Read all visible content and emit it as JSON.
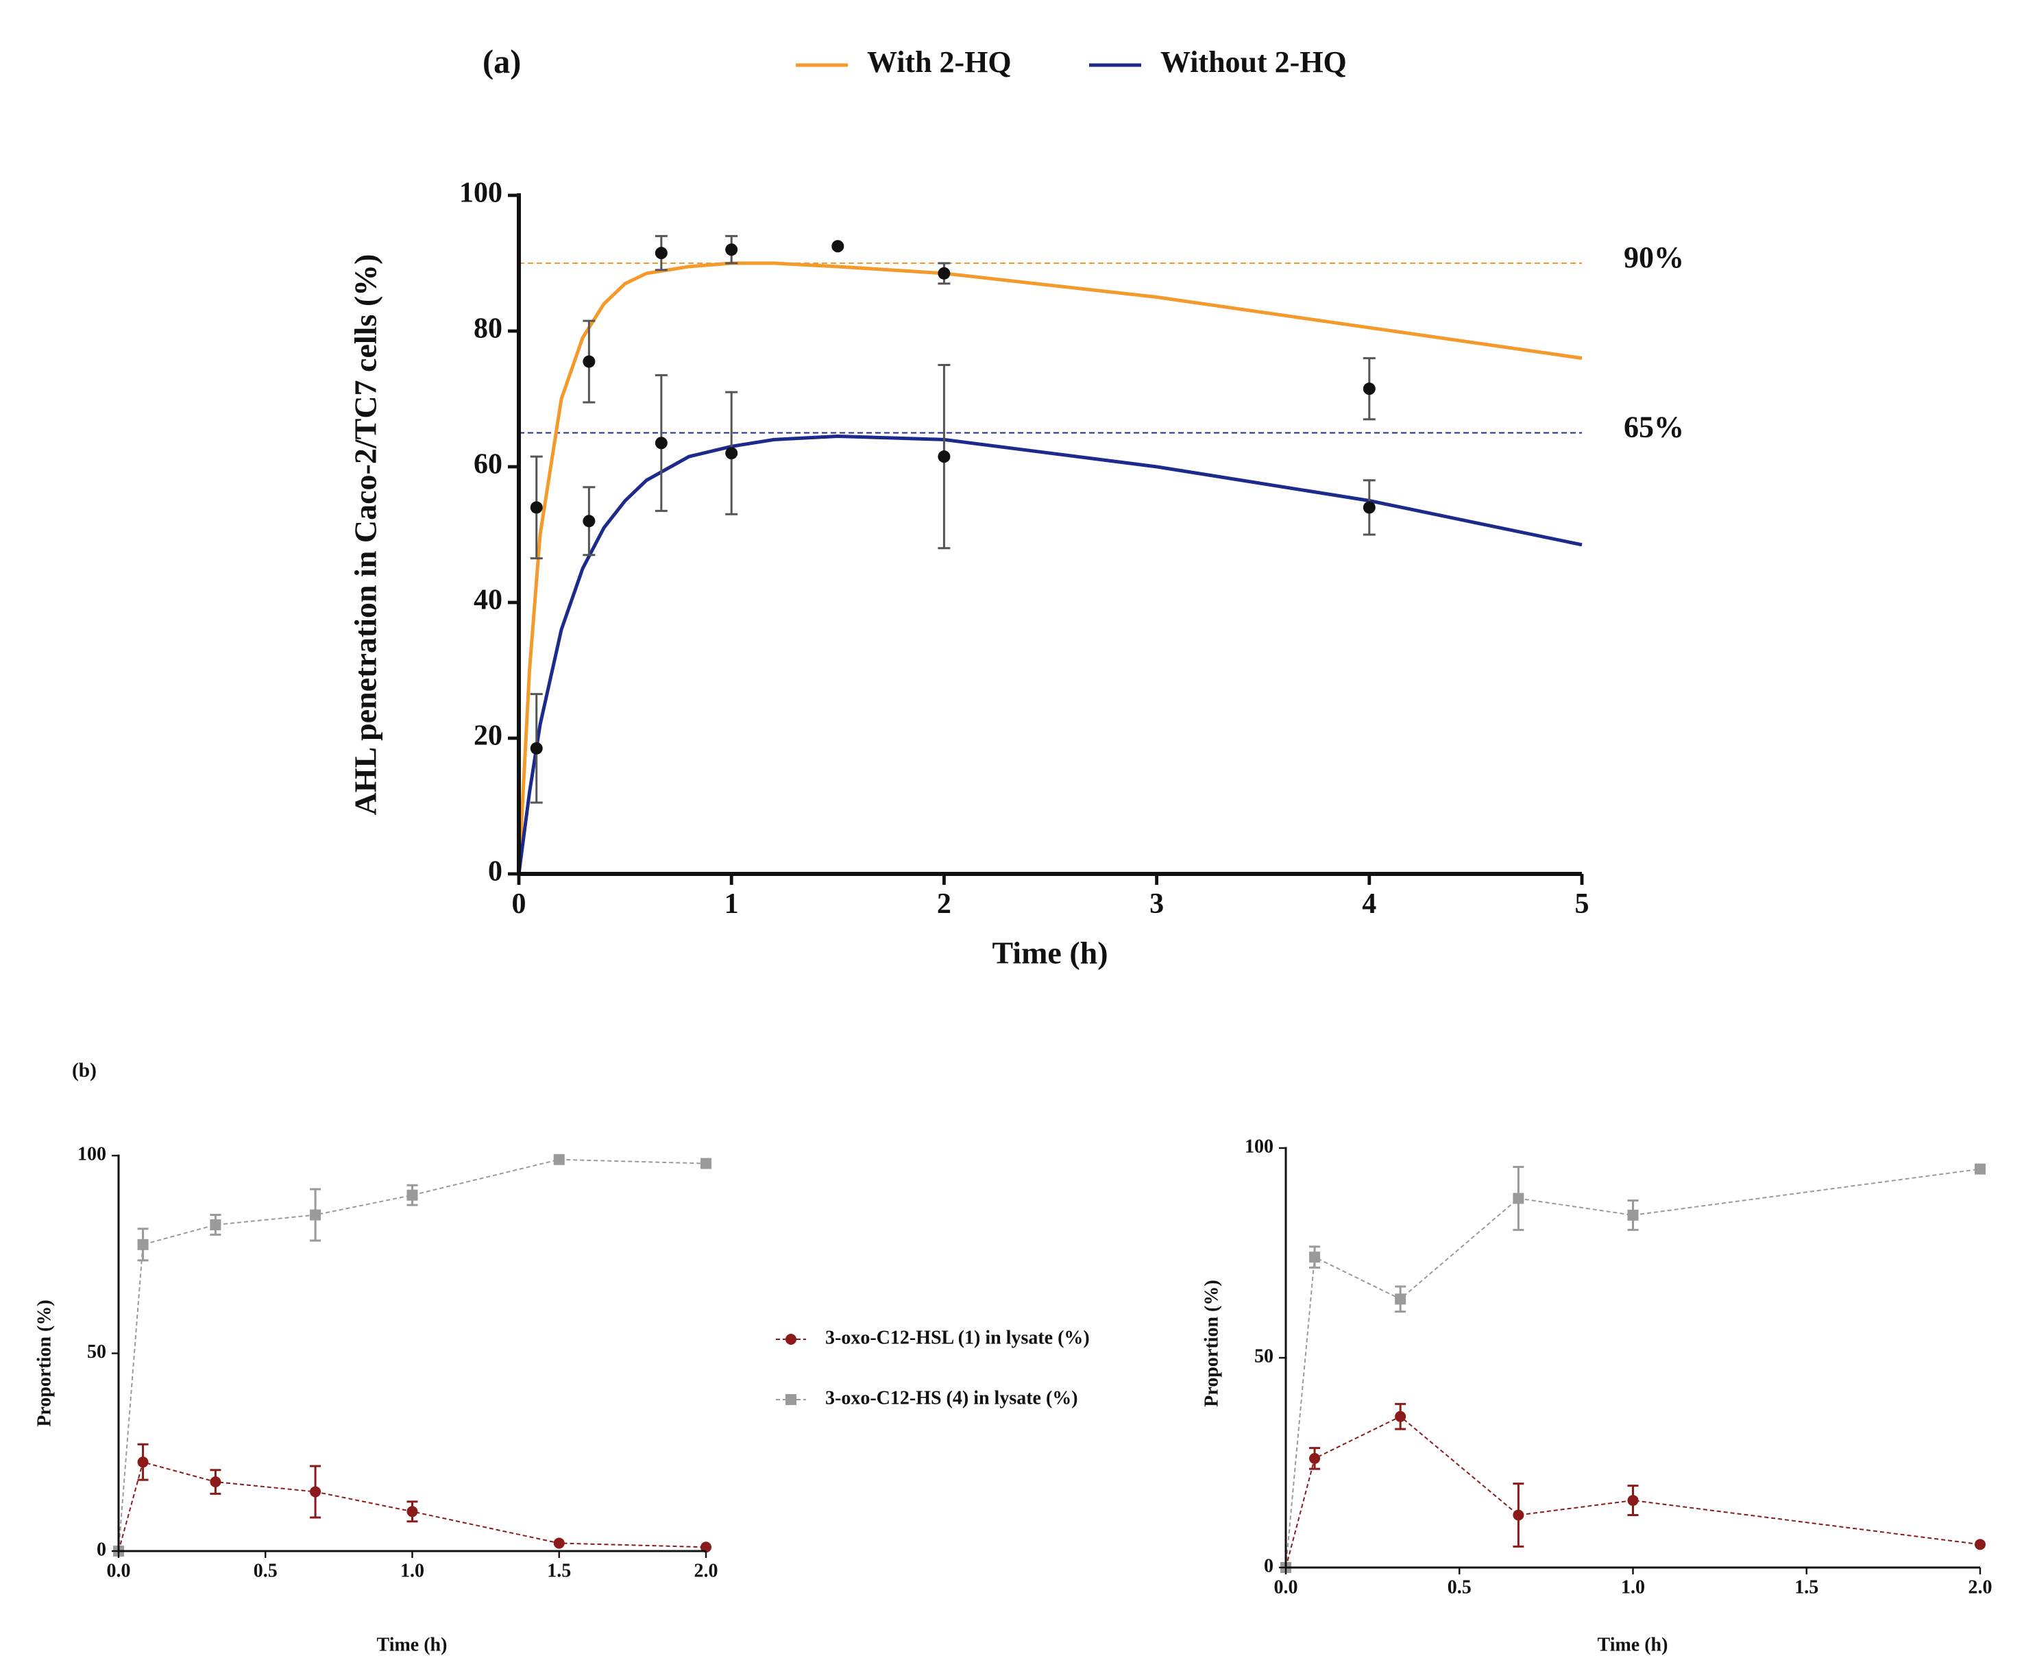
{
  "chart_data": [
    {
      "type": "scatter",
      "panel_label": "(a)",
      "xlabel": "Time (h)",
      "ylabel": "AHL penetration in Caco-2/TC7 cells (%)",
      "xlim": [
        0,
        5
      ],
      "xticks": [
        0,
        1,
        2,
        3,
        4,
        5
      ],
      "ylim": [
        0,
        100
      ],
      "yticks": [
        0,
        20,
        40,
        60,
        80,
        100
      ],
      "legend": "top",
      "series": [
        {
          "name": "With 2-HQ",
          "color": "#f39a2b",
          "line": "solid",
          "marker": "none",
          "x": [
            0,
            0.05,
            0.1,
            0.2,
            0.3,
            0.4,
            0.5,
            0.6,
            0.8,
            1,
            1.2,
            1.5,
            2,
            3,
            4,
            5
          ],
          "values": [
            0,
            30,
            50,
            70,
            79,
            84,
            87,
            88.5,
            89.5,
            90,
            90,
            89.5,
            88.5,
            85,
            80.5,
            76
          ]
        },
        {
          "name": "Without 2-HQ",
          "color": "#1c2a8c",
          "line": "solid",
          "marker": "none",
          "x": [
            0,
            0.05,
            0.1,
            0.2,
            0.3,
            0.4,
            0.5,
            0.6,
            0.8,
            1,
            1.2,
            1.5,
            2,
            3,
            4,
            5
          ],
          "values": [
            0,
            12,
            22,
            36,
            45,
            51,
            55,
            58,
            61.5,
            63,
            64,
            64.5,
            64,
            60,
            55,
            48.5
          ]
        },
        {
          "color": "#111111",
          "line": "none",
          "marker": "circle",
          "x": [
            0.083,
            0.33,
            0.67,
            1,
            1.5,
            2,
            4
          ],
          "values": [
            54,
            75.5,
            91.5,
            92,
            92.5,
            88.5,
            71.5
          ],
          "errors": [
            7.5,
            6,
            2.5,
            2,
            null,
            1.5,
            4.5
          ]
        },
        {
          "color": "#111111",
          "line": "none",
          "marker": "circle",
          "x": [
            0.083,
            0.33,
            0.67,
            1,
            2,
            4
          ],
          "values": [
            18.5,
            52,
            63.5,
            62,
            61.5,
            54
          ],
          "errors": [
            8,
            5,
            10,
            9,
            13.5,
            4
          ]
        }
      ],
      "reference_lines": [
        {
          "value": 90,
          "label": "90%",
          "color": "#f39a2b"
        },
        {
          "value": 65,
          "label": "65%",
          "color": "#1c2a8c"
        }
      ]
    },
    {
      "type": "scatter",
      "panel_label": "(b)",
      "xlabel": "Time (h)",
      "ylabel": "Proportion (%)",
      "xlim": [
        0,
        2
      ],
      "xticks": [
        {
          "value": 0,
          "label": "0.0"
        },
        0.5,
        {
          "value": 1,
          "label": "1.0"
        },
        1.5,
        {
          "value": 2,
          "label": "2.0"
        }
      ],
      "ylim": [
        0,
        100
      ],
      "yticks": [
        0,
        50,
        100
      ],
      "legend": "right",
      "series": [
        {
          "name": "3-oxo-C12-HSL (1) in lysate (%)",
          "color": "#8b1a1a",
          "line": "dashed",
          "marker": "circle",
          "x": [
            0,
            0.083,
            0.33,
            0.67,
            1,
            1.5,
            2
          ],
          "values": [
            0,
            22.5,
            17.5,
            15,
            10,
            2,
            1
          ],
          "errors": [
            null,
            4.5,
            3,
            6.5,
            2.5,
            null,
            null
          ]
        },
        {
          "name": "3-oxo-C12-HS (4) in lysate (%)",
          "color": "#9a9a9a",
          "line": "dashed",
          "marker": "square",
          "x": [
            0,
            0.083,
            0.33,
            0.67,
            1,
            1.5,
            2
          ],
          "values": [
            0,
            77.5,
            82.5,
            85,
            90,
            99,
            98
          ],
          "errors": [
            null,
            4,
            2.5,
            6.5,
            2.5,
            null,
            null
          ]
        }
      ]
    },
    {
      "type": "scatter",
      "xlabel": "Time (h)",
      "ylabel": "Proportion (%)",
      "xlim": [
        0,
        2
      ],
      "xticks": [
        {
          "value": 0,
          "label": "0.0"
        },
        0.5,
        {
          "value": 1,
          "label": "1.0"
        },
        1.5,
        {
          "value": 2,
          "label": "2.0"
        }
      ],
      "ylim": [
        0,
        100
      ],
      "yticks": [
        0,
        50,
        100
      ],
      "series": [
        {
          "color": "#8b1a1a",
          "line": "dashed",
          "marker": "circle",
          "x": [
            0,
            0.083,
            0.33,
            0.67,
            1,
            2
          ],
          "values": [
            0,
            26,
            36,
            12.5,
            16,
            5.5
          ],
          "errors": [
            null,
            2.5,
            3,
            7.5,
            3.5,
            null
          ]
        },
        {
          "color": "#9a9a9a",
          "line": "dashed",
          "marker": "square",
          "x": [
            0,
            0.083,
            0.33,
            0.67,
            1,
            2
          ],
          "values": [
            0,
            74,
            64,
            88,
            84,
            95
          ],
          "errors": [
            null,
            2.5,
            3,
            7.5,
            3.5,
            null
          ]
        }
      ]
    }
  ]
}
